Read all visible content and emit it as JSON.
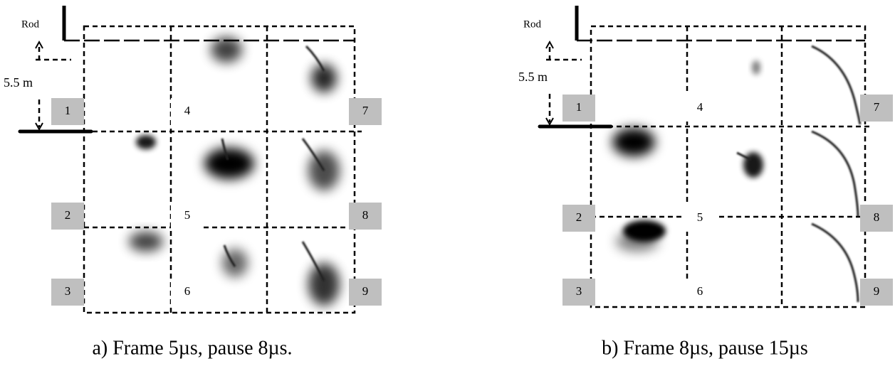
{
  "panels": [
    {
      "rod_label": "Rod",
      "distance_label": "5.5 m",
      "frames": [
        "1",
        "2",
        "3",
        "4",
        "5",
        "6",
        "7",
        "8",
        "9"
      ],
      "caption": "a) Frame 5µs, pause 8µs."
    },
    {
      "rod_label": "Rod",
      "distance_label": "5.5 m",
      "frames": [
        "1",
        "2",
        "3",
        "4",
        "5",
        "6",
        "7",
        "8",
        "9"
      ],
      "caption": "b) Frame 8µs, pause 15µs"
    }
  ]
}
